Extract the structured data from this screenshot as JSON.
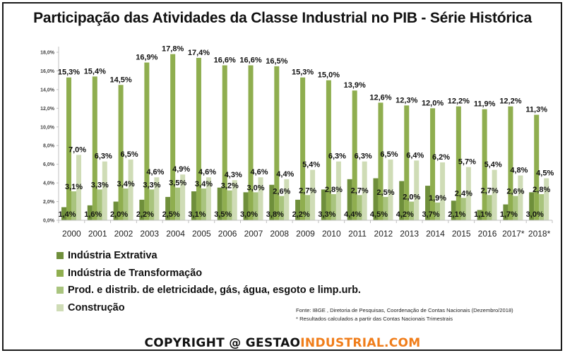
{
  "chart_data": {
    "type": "bar",
    "title": "Participação das Atividades da Classe Industrial no PIB - Série Histórica",
    "xlabel": "",
    "ylabel": "",
    "ylim": [
      0,
      18
    ],
    "yticks": [
      "0,0%",
      "2,0%",
      "4,0%",
      "6,0%",
      "8,0%",
      "10,0%",
      "12,0%",
      "14,0%",
      "16,0%",
      "18,0%"
    ],
    "ytick_values": [
      0,
      2,
      4,
      6,
      8,
      10,
      12,
      14,
      16,
      18
    ],
    "grid": false,
    "legend_position": "bottom-left",
    "categories": [
      "2000",
      "2001",
      "2002",
      "2003",
      "2004",
      "2005",
      "2006",
      "2007",
      "2008",
      "2009",
      "2010",
      "2011",
      "2012",
      "2013",
      "2014",
      "2015",
      "2016",
      "2017*",
      "2018*"
    ],
    "series": [
      {
        "name": "Indústria Extrativa",
        "color": "#6f8f3b",
        "values": [
          1.4,
          1.6,
          2.0,
          2.2,
          2.5,
          3.1,
          3.5,
          3.0,
          3.8,
          2.2,
          3.3,
          4.4,
          4.5,
          4.2,
          3.7,
          2.1,
          1.1,
          1.7,
          3.0
        ],
        "labels": [
          "1,4%",
          "1,6%",
          "2,0%",
          "2,2%",
          "2,5%",
          "3,1%",
          "3,5%",
          "3,0%",
          "3,8%",
          "2,2%",
          "3,3%",
          "4,4%",
          "4,5%",
          "4,2%",
          "3,7%",
          "2,1%",
          "1,1%",
          "1,7%",
          "3,0%"
        ]
      },
      {
        "name": "Indústria de Transformação",
        "color": "#8fae4f",
        "values": [
          15.3,
          15.4,
          14.5,
          16.9,
          17.8,
          17.4,
          16.6,
          16.6,
          16.5,
          15.3,
          15.0,
          13.9,
          12.6,
          12.3,
          12.0,
          12.2,
          11.9,
          12.2,
          11.3
        ],
        "labels": [
          "15,3%",
          "15,4%",
          "14,5%",
          "16,9%",
          "17,8%",
          "17,4%",
          "16,6%",
          "16,6%",
          "16,5%",
          "15,3%",
          "15,0%",
          "13,9%",
          "12,6%",
          "12,3%",
          "12,0%",
          "12,2%",
          "11,9%",
          "12,2%",
          "11,3%"
        ]
      },
      {
        "name": "Prod. e distrib. de eletricidade, gás, água, esgoto e limp.urb.",
        "color": "#a9c47e",
        "values": [
          3.1,
          3.3,
          3.4,
          3.3,
          3.5,
          3.4,
          3.2,
          3.0,
          2.6,
          2.7,
          2.8,
          2.7,
          2.5,
          2.0,
          1.9,
          2.4,
          2.7,
          2.6,
          2.8
        ],
        "labels": [
          "3,1%",
          "3,3%",
          "3,4%",
          "3,3%",
          "3,5%",
          "3,4%",
          "3,2%",
          "3,0%",
          "2,6%",
          "2,7%",
          "2,8%",
          "2,7%",
          "2,5%",
          "2,0%",
          "1,9%",
          "2,4%",
          "2,7%",
          "2,6%",
          "2,8%"
        ]
      },
      {
        "name": "Construção",
        "color": "#cfdcb6",
        "values": [
          7.0,
          6.3,
          6.5,
          4.6,
          4.9,
          4.6,
          4.3,
          4.6,
          4.4,
          5.4,
          6.3,
          6.3,
          6.5,
          6.4,
          6.2,
          5.7,
          5.4,
          4.8,
          4.5
        ],
        "labels": [
          "7,0%",
          "6,3%",
          "6,5%",
          "4,6%",
          "4,9%",
          "4,6%",
          "4,3%",
          "4,6%",
          "4,4%",
          "5,4%",
          "6,3%",
          "6,3%",
          "6,5%",
          "6,4%",
          "6,2%",
          "5,7%",
          "5,4%",
          "4,8%",
          "4,5%"
        ]
      }
    ]
  },
  "source": {
    "line1": "Fonte: IBGE , Diretoria de Pesquisas,  Coordenação de Contas Nacionais (Dezembro/2018)",
    "line2": "* Resultados calculados a partir das Contas Nacionais Trimestrais"
  },
  "copyright": {
    "dark_part": "COPYRIGHT @ GESTAO",
    "orange_part": "INDUSTRIAL.COM",
    "orange_color": "#f07d1a"
  }
}
